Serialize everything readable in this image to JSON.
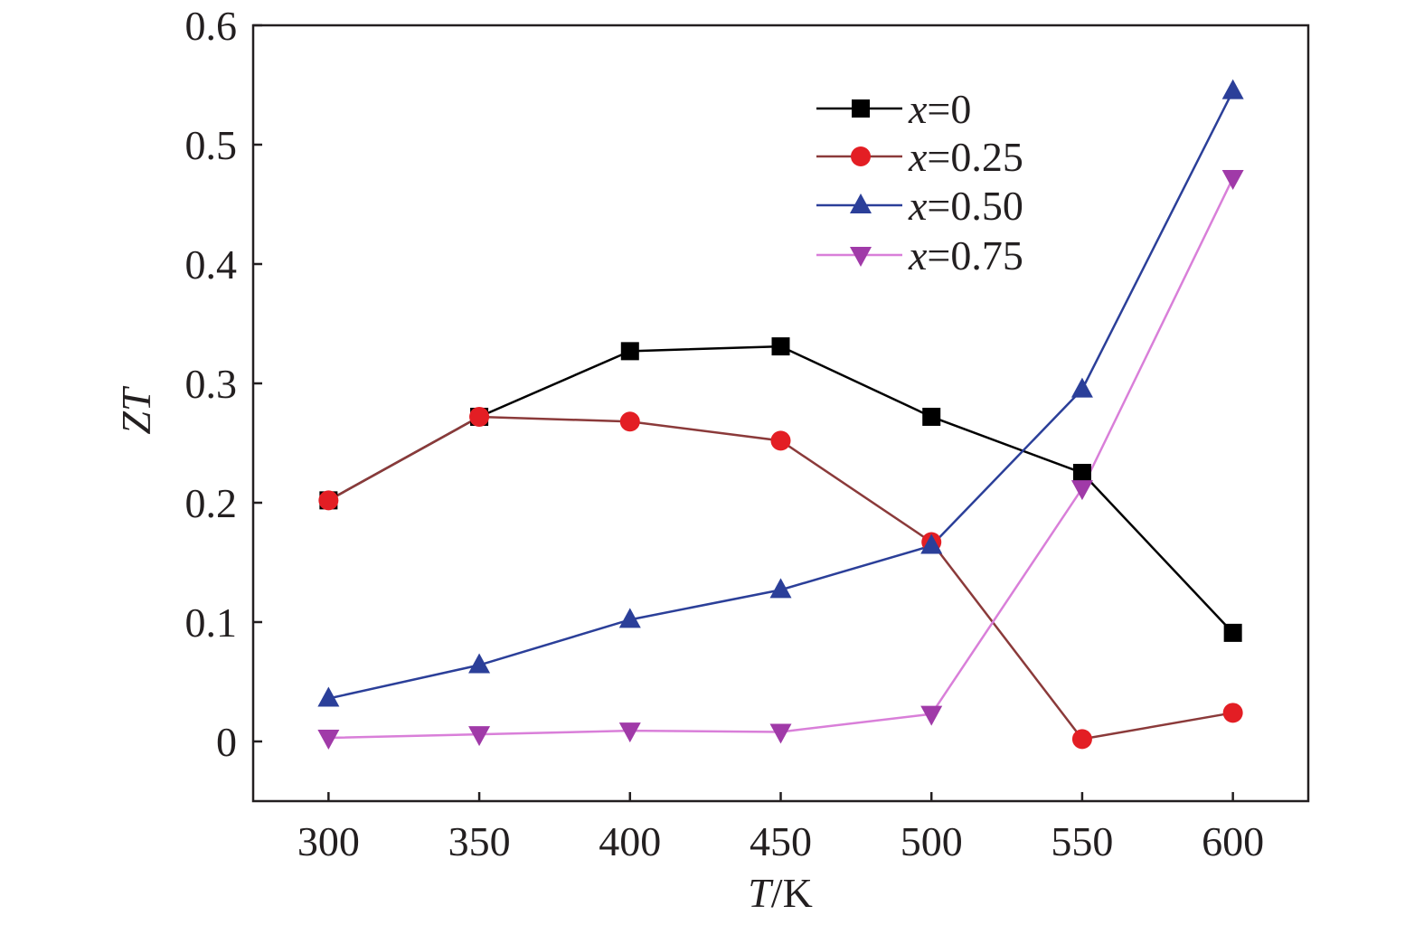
{
  "chart_data": {
    "type": "line",
    "title": "",
    "xlabel_italic": "T",
    "xlabel_rest": "/K",
    "ylabel": "ZT",
    "xlim": [
      275,
      625
    ],
    "ylim": [
      -0.05,
      0.6
    ],
    "xticks": [
      300,
      350,
      400,
      450,
      500,
      550,
      600
    ],
    "yticks": [
      0,
      0.1,
      0.2,
      0.3,
      0.4,
      0.5,
      0.6
    ],
    "ytick_labels": [
      "0",
      "0.1",
      "0.2",
      "0.3",
      "0.4",
      "0.5",
      "0.6"
    ],
    "grid": false,
    "legend_position": "top-right",
    "x": [
      300,
      350,
      400,
      450,
      500,
      550,
      600
    ],
    "series": [
      {
        "name_italic": "x",
        "name_rest": "=0",
        "color": "#000000",
        "marker": "square",
        "values": [
          0.202,
          0.272,
          0.327,
          0.331,
          0.272,
          0.225,
          0.091
        ]
      },
      {
        "name_italic": "x",
        "name_rest": "=0.25",
        "color": "#e31e24",
        "line_color": "#8b3a3a",
        "marker": "circle",
        "values": [
          0.202,
          0.272,
          0.268,
          0.252,
          0.167,
          0.002,
          0.024
        ]
      },
      {
        "name_italic": "x",
        "name_rest": "=0.50",
        "color": "#2b3f99",
        "marker": "triangle-up",
        "values": [
          0.036,
          0.064,
          0.102,
          0.127,
          0.164,
          0.295,
          0.545
        ]
      },
      {
        "name_italic": "x",
        "name_rest": "=0.75",
        "color": "#a03aa8",
        "line_color": "#d97fd9",
        "marker": "triangle-down",
        "values": [
          0.003,
          0.006,
          0.009,
          0.008,
          0.023,
          0.212,
          0.472
        ]
      }
    ]
  }
}
